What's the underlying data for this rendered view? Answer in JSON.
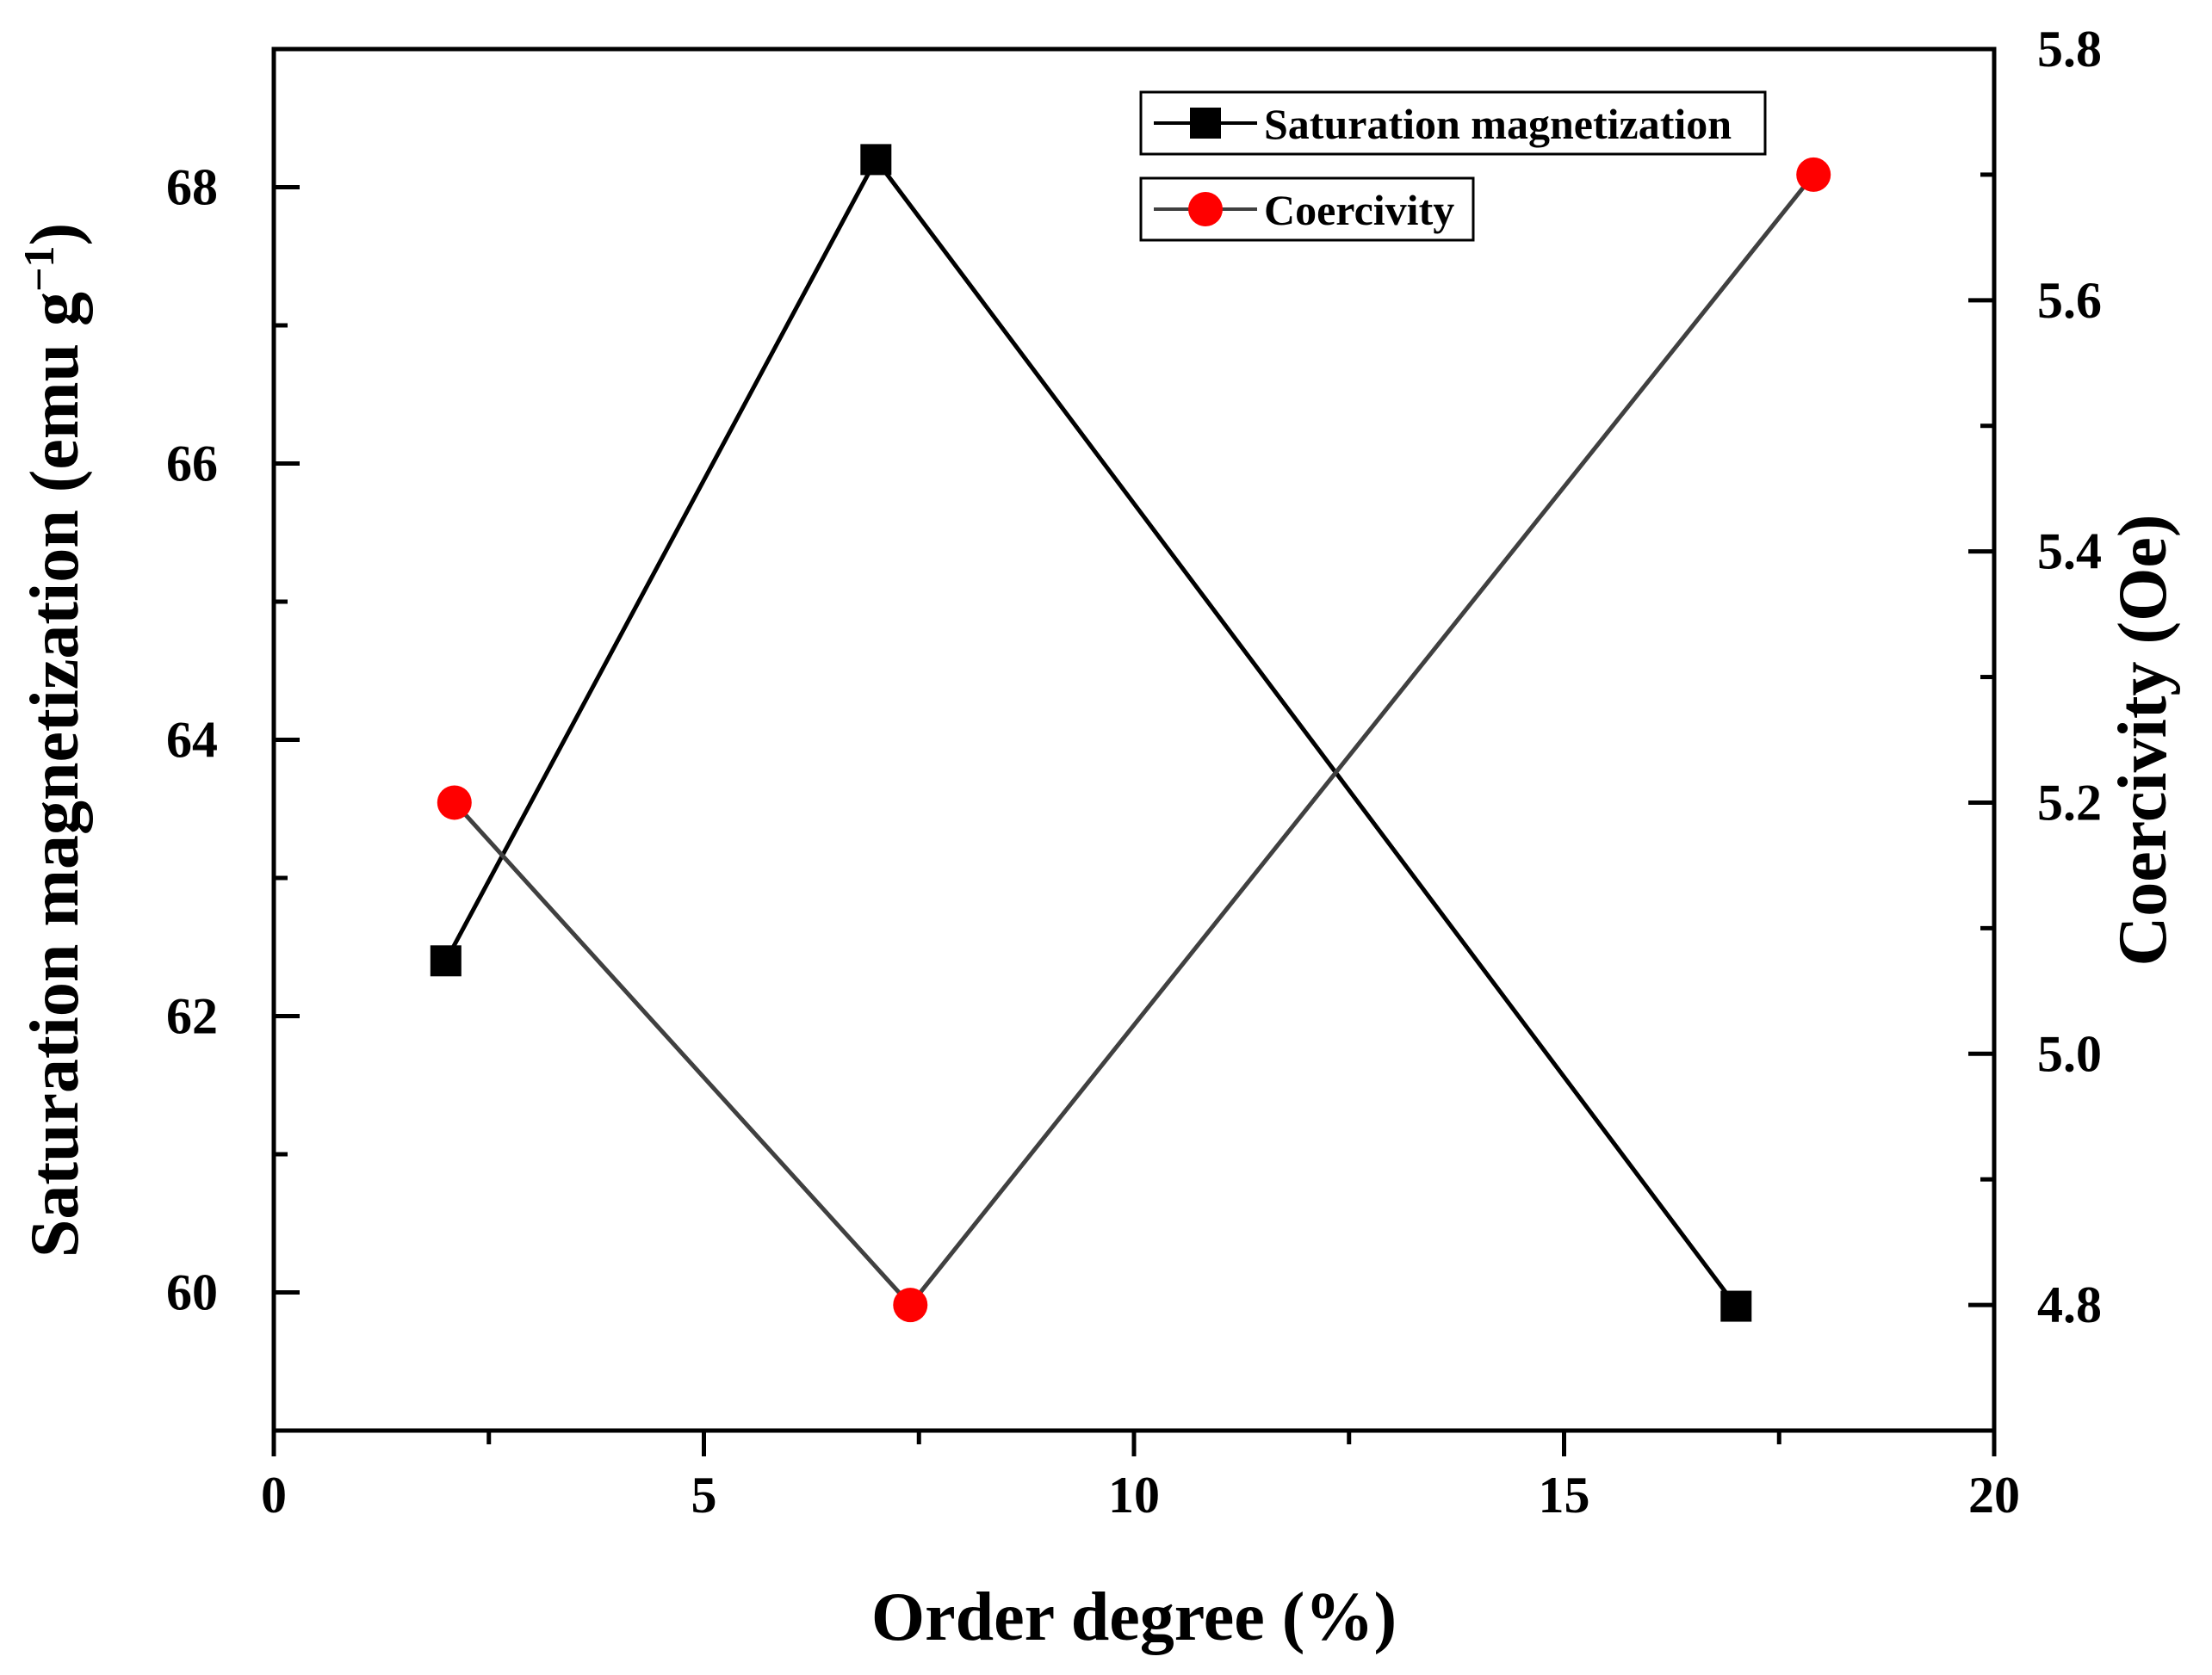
{
  "chart_data": {
    "type": "line",
    "xlabel": "Order degree (%)",
    "ylabel_left": "Saturation magnetization (emu g",
    "ylabel_left_sup": "−1",
    "ylabel_left_close": ")",
    "ylabel_right": "Coercivity (Oe)",
    "xlim": [
      0,
      20
    ],
    "ylim_left": [
      59.0,
      69.0
    ],
    "ylim_right": [
      4.7,
      5.8
    ],
    "x_ticks": [
      "0",
      "5",
      "10",
      "15",
      "20"
    ],
    "y_left_ticks": [
      "60",
      "62",
      "64",
      "66",
      "68"
    ],
    "y_right_ticks": [
      "4.8",
      "5.0",
      "5.2",
      "5.4",
      "5.6",
      "5.8"
    ],
    "grid": false,
    "legend_position": "top-right",
    "series": [
      {
        "name": "Saturation magnetization",
        "axis": "left",
        "marker": "square",
        "color": "#000000",
        "line_color": "#000000",
        "x": [
          2.0,
          7.0,
          17.0
        ],
        "y": [
          62.4,
          68.2,
          59.9
        ]
      },
      {
        "name": "Coercivity",
        "axis": "right",
        "marker": "circle",
        "color": "#ff0000",
        "line_color": "#404040",
        "x": [
          2.1,
          7.4,
          17.9
        ],
        "y": [
          5.2,
          4.8,
          5.7
        ]
      }
    ]
  }
}
